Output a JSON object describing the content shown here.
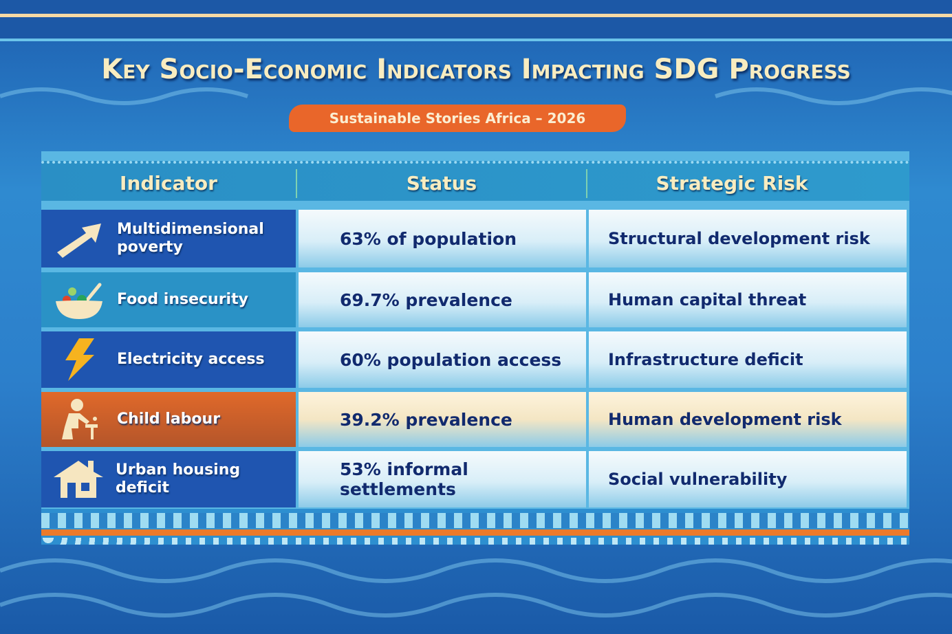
{
  "title": "Key Socio-Economic Indicators Impacting SDG Progress",
  "subtitle": "Sustainable Stories Africa – 2026",
  "headers": [
    "Indicator",
    "Status",
    "Strategic Risk"
  ],
  "rows": [
    {
      "indicator": "Multidimensional poverty",
      "status": "63% of population",
      "risk": "Structural development risk",
      "icon": "arrow-up-right-icon",
      "color": "#1f55b0"
    },
    {
      "indicator": "Food insecurity",
      "status": "69.7% prevalence",
      "risk": "Human capital threat",
      "icon": "food-bowl-icon",
      "color": "#2a92c6"
    },
    {
      "indicator": "Electricity access",
      "status": "60% population access",
      "risk": "Infrastructure deficit",
      "icon": "lightning-bolt-icon",
      "color": "#1f55b0"
    },
    {
      "indicator": "Child labour",
      "status": "39.2% prevalence",
      "risk": "Human development risk",
      "icon": "child-worker-icon",
      "color": "#d8652a"
    },
    {
      "indicator": "Urban housing deficit",
      "status": "53% informal settlements",
      "risk": "Social vulnerability",
      "icon": "house-icon",
      "color": "#1f55b0"
    }
  ]
}
